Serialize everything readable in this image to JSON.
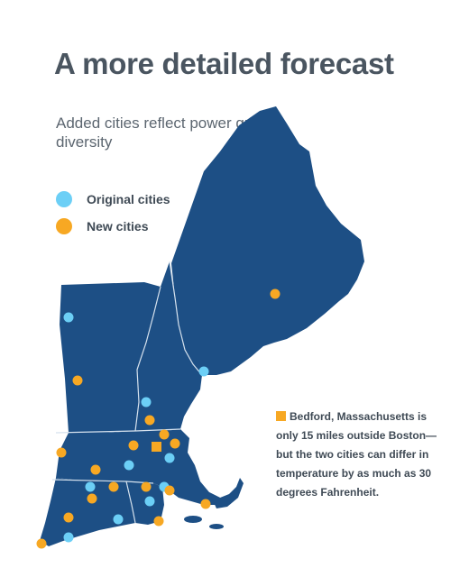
{
  "title": "A more detailed forecast",
  "subtitle": "Added cities reflect power grid’s diversity",
  "colors": {
    "original": "#6ccff6",
    "new": "#f7a823",
    "map": "#1d4f85",
    "border": "#d6e2ee"
  },
  "legend": [
    {
      "label": "Original cities",
      "color": "#6ccff6"
    },
    {
      "label": "New cities",
      "color": "#f7a823"
    }
  ],
  "callout": {
    "text": "Bedford, Massachusetts is only 15 miles outside Boston—but the two cities can differ in temperature by as much as 30 degrees Fahrenheit."
  },
  "cities": {
    "original": 10,
    "new": 16,
    "highlighted": "Bedford, Massachusetts"
  }
}
